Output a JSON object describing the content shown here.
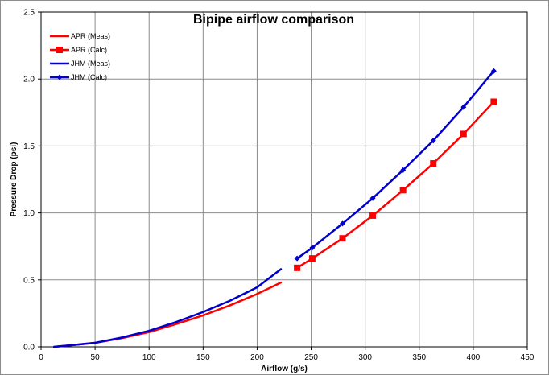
{
  "chart_data": {
    "type": "line",
    "title": "Bipipe airflow comparison",
    "xlabel": "Airflow (g/s)",
    "ylabel": "Pressure Drop (psi)",
    "xlim": [
      0,
      450
    ],
    "ylim": [
      0,
      2.5
    ],
    "xticks": [
      0,
      50,
      100,
      150,
      200,
      250,
      300,
      350,
      400,
      450
    ],
    "yticks": [
      0.0,
      0.5,
      1.0,
      1.5,
      2.0,
      2.5
    ],
    "xtick_labels": [
      "0",
      "50",
      "100",
      "150",
      "200",
      "250",
      "300",
      "350",
      "400",
      "450"
    ],
    "ytick_labels": [
      "0.0",
      "0.5",
      "1.0",
      "1.5",
      "2.0",
      "2.5"
    ],
    "grid": true,
    "legend_position": "top-left",
    "series": [
      {
        "name": "APR (Meas)",
        "color": "#ff0000",
        "marker": "none",
        "x": [
          12,
          25,
          50,
          75,
          100,
          125,
          150,
          175,
          200,
          222
        ],
        "y": [
          0.0,
          0.01,
          0.03,
          0.065,
          0.11,
          0.17,
          0.235,
          0.31,
          0.395,
          0.48
        ]
      },
      {
        "name": "APR (Calc)",
        "color": "#ff0000",
        "marker": "square",
        "x": [
          237,
          251,
          279,
          307,
          335,
          363,
          391,
          419
        ],
        "y": [
          0.59,
          0.66,
          0.81,
          0.98,
          1.17,
          1.37,
          1.59,
          1.83
        ]
      },
      {
        "name": "JHM (Meas)",
        "color": "#0000cc",
        "marker": "none",
        "x": [
          12,
          25,
          50,
          75,
          100,
          125,
          150,
          175,
          200,
          222
        ],
        "y": [
          0.0,
          0.01,
          0.03,
          0.07,
          0.12,
          0.185,
          0.26,
          0.345,
          0.445,
          0.58
        ]
      },
      {
        "name": "JHM (Calc)",
        "color": "#0000cc",
        "marker": "diamond",
        "x": [
          237,
          251,
          279,
          307,
          335,
          363,
          391,
          419
        ],
        "y": [
          0.66,
          0.74,
          0.92,
          1.11,
          1.32,
          1.54,
          1.79,
          2.06
        ]
      }
    ]
  }
}
